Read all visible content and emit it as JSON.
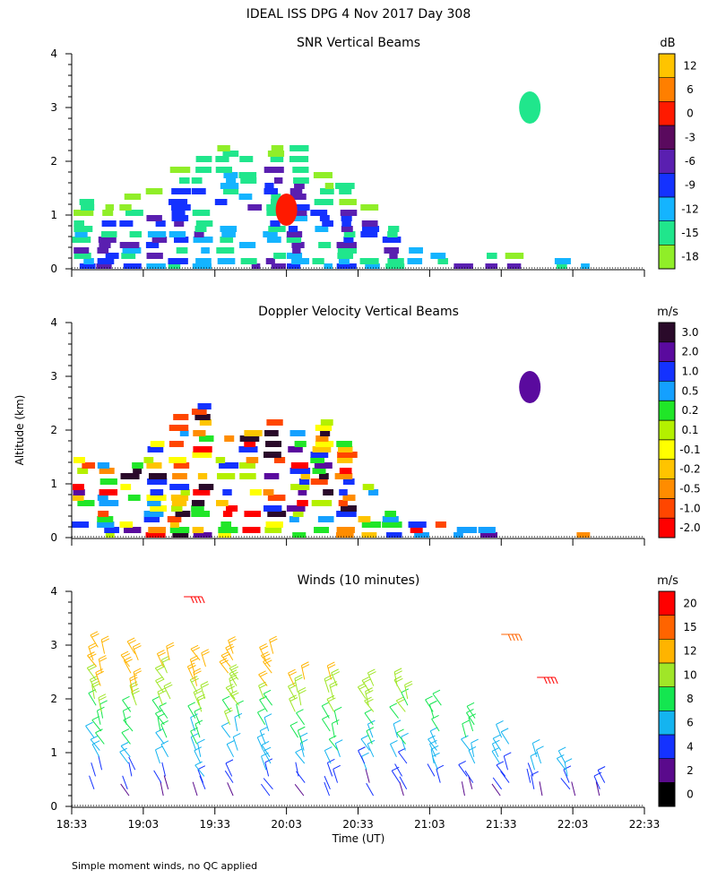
{
  "header": {
    "title": "IDEAL ISS DPG    4 Nov 2017 Day 308"
  },
  "footer": {
    "note": "Simple moment winds, no QC applied"
  },
  "axes": {
    "ylabel": "Altitude (km)",
    "xlabel": "Time (UT)",
    "y_ticks": [
      "0",
      "1",
      "2",
      "3",
      "4"
    ],
    "x_ticks": [
      "18:33",
      "19:03",
      "19:33",
      "20:03",
      "20:33",
      "21:03",
      "21:33",
      "22:03",
      "22:33"
    ]
  },
  "chart_data": [
    {
      "type": "heatmap",
      "title": "SNR Vertical Beams",
      "xlabel": "",
      "ylabel": "",
      "x_range": [
        "18:33",
        "22:33"
      ],
      "ylim": [
        0,
        4
      ],
      "colorbar": {
        "unit": "dB",
        "tick_labels": [
          "12",
          "6",
          "0",
          "-3",
          "-6",
          "-9",
          "-12",
          "-15",
          "-18"
        ],
        "colors": [
          "#ffc400",
          "#ff7f00",
          "#ff1a00",
          "#5a0a5e",
          "#5a1fb0",
          "#1432ff",
          "#14b4ff",
          "#20e68c",
          "#90ee28"
        ]
      },
      "echo_top_km": [
        1.3,
        1.2,
        1.4,
        1.6,
        1.9,
        2.2,
        2.3,
        2.2,
        2.4,
        2.3,
        1.8,
        1.6,
        1.2,
        0.8,
        0.5,
        0.35,
        0.3,
        0.3,
        0.25,
        0.2,
        0.2,
        0.1,
        0.05,
        0.0
      ],
      "features": [
        {
          "time": "20:03",
          "altitude_km": 1.1,
          "value_db": 0
        },
        {
          "time": "21:45",
          "altitude_km": 3.0,
          "value_db": -15
        }
      ]
    },
    {
      "type": "heatmap",
      "title": "Doppler Velocity Vertical Beams",
      "xlabel": "",
      "ylabel": "Altitude (km)",
      "x_range": [
        "18:33",
        "22:33"
      ],
      "ylim": [
        0,
        4
      ],
      "colorbar": {
        "unit": "m/s",
        "tick_labels": [
          "3.0",
          "2.0",
          "1.0",
          "0.5",
          "0.2",
          "0.1",
          "-0.1",
          "-0.2",
          "-0.5",
          "-1.0",
          "-2.0"
        ],
        "colors": [
          "#2a0a2a",
          "#5a0a9e",
          "#1432ff",
          "#14a0ff",
          "#20e628",
          "#b4f000",
          "#ffff00",
          "#ffc400",
          "#ff8c00",
          "#ff4600",
          "#ff0000"
        ]
      },
      "echo_top_km": [
        1.5,
        1.4,
        1.4,
        1.8,
        2.3,
        2.5,
        1.9,
        2.0,
        2.2,
        2.0,
        2.2,
        1.8,
        1.0,
        0.6,
        0.4,
        0.3,
        0.25,
        0.2,
        0.2,
        0.15,
        0.1,
        0.05,
        0.0,
        0.0
      ],
      "features": [
        {
          "time": "21:45",
          "altitude_km": 2.8,
          "value_ms": 2.0
        }
      ]
    },
    {
      "type": "scatter",
      "title": "Winds (10 minutes)",
      "xlabel": "Time (UT)",
      "ylabel": "",
      "x_range": [
        "18:33",
        "22:33"
      ],
      "ylim": [
        0,
        4
      ],
      "colorbar": {
        "unit": "m/s",
        "tick_labels": [
          "20",
          "15",
          "12",
          "10",
          "8",
          "6",
          "4",
          "2",
          "0"
        ],
        "colors": [
          "#ff0000",
          "#ff6400",
          "#ffb400",
          "#a0e628",
          "#14e650",
          "#14b4f0",
          "#1432ff",
          "#5a0a8c",
          "#000000"
        ]
      },
      "wind_profile_tops_km": [
        3.2,
        2.9,
        2.8,
        2.9,
        2.9,
        2.9,
        2.4,
        2.4,
        2.3,
        2.3,
        2.1,
        1.7,
        1.4,
        1.0,
        0.8,
        0.5
      ],
      "upper_barbs": [
        {
          "time": "19:20",
          "altitude_km": 3.9,
          "speed_ms": 20
        },
        {
          "time": "21:33",
          "altitude_km": 3.2,
          "speed_ms": 15
        },
        {
          "time": "21:48",
          "altitude_km": 2.4,
          "speed_ms": 20
        }
      ]
    }
  ]
}
